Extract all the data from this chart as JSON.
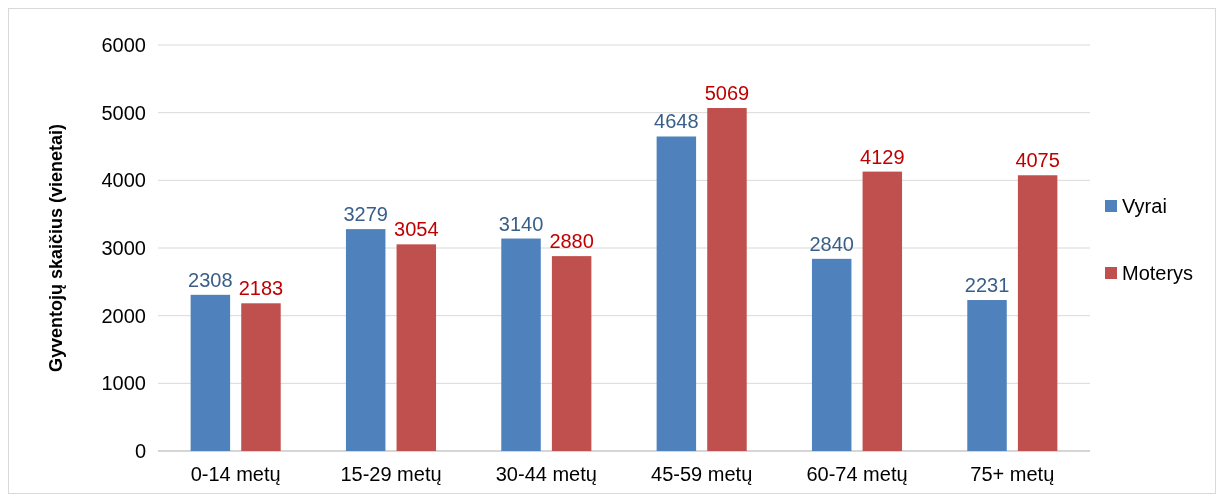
{
  "chart_data": {
    "type": "bar",
    "ylabel": "Gyventojų skaičius (vienetai)",
    "categories": [
      "0-14 metų",
      "15-29 metų",
      "30-44 metų",
      "45-59 metų",
      "60-74 metų",
      "75+ metų"
    ],
    "series": [
      {
        "name": "Vyrai",
        "color": "#4f81bd",
        "values": [
          2308,
          3279,
          3140,
          4648,
          2840,
          2231
        ]
      },
      {
        "name": "Moterys",
        "color": "#c0504d",
        "values": [
          2183,
          3054,
          2880,
          5069,
          4129,
          4075
        ]
      }
    ],
    "ylim": [
      0,
      6000
    ],
    "yticks": [
      0,
      1000,
      2000,
      3000,
      4000,
      5000,
      6000
    ],
    "grid": "y",
    "legend": "right",
    "data_labels": true
  }
}
